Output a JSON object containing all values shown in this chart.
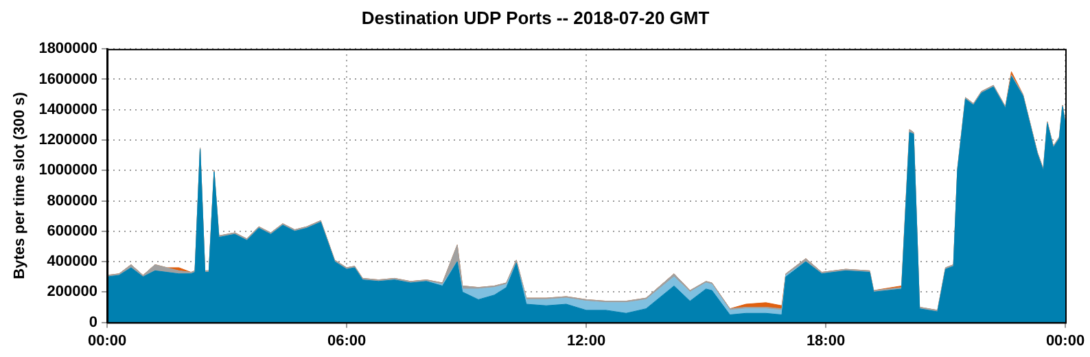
{
  "chart_data": {
    "type": "area",
    "title": "Destination UDP Ports -- 2018-07-20 GMT",
    "ylabel": "Bytes per time slot (300 s)",
    "stacked": true,
    "grid": true,
    "x": [
      0,
      0.3,
      0.6,
      0.9,
      1.2,
      1.5,
      1.8,
      2.1,
      2.2,
      2.33,
      2.45,
      2.55,
      2.68,
      2.8,
      3.2,
      3.5,
      3.8,
      4.1,
      4.4,
      4.7,
      5.0,
      5.35,
      5.7,
      6.0,
      6.2,
      6.4,
      6.8,
      7.2,
      7.6,
      8.0,
      8.4,
      8.77,
      8.9,
      9.3,
      9.7,
      10.0,
      10.25,
      10.5,
      11.0,
      11.5,
      12.0,
      12.5,
      13.0,
      13.5,
      14.2,
      14.6,
      15.0,
      15.15,
      15.6,
      16.0,
      16.5,
      16.9,
      17.0,
      17.5,
      17.9,
      18.5,
      19.1,
      19.2,
      19.9,
      20.1,
      20.2,
      20.35,
      20.8,
      21.0,
      21.2,
      21.3,
      21.5,
      21.7,
      21.9,
      22.2,
      22.5,
      22.65,
      22.94,
      23.3,
      23.45,
      23.55,
      23.7,
      23.85,
      23.93,
      24.0
    ],
    "xlim": [
      0,
      24
    ],
    "xticks": [
      {
        "value": 0,
        "label": "00:00"
      },
      {
        "value": 6,
        "label": "06:00"
      },
      {
        "value": 12,
        "label": "12:00"
      },
      {
        "value": 18,
        "label": "18:00"
      },
      {
        "value": 24,
        "label": "00:00"
      }
    ],
    "ylim": [
      0,
      1800000
    ],
    "yticks": [
      0,
      200000,
      400000,
      600000,
      800000,
      1000000,
      1200000,
      1400000,
      1600000,
      1800000
    ],
    "series": [
      {
        "color": "#0080b0",
        "values": [
          300000,
          310000,
          360000,
          300000,
          340000,
          330000,
          320000,
          320000,
          330000,
          1140000,
          330000,
          330000,
          990000,
          560000,
          580000,
          540000,
          620000,
          580000,
          640000,
          600000,
          620000,
          660000,
          400000,
          350000,
          360000,
          280000,
          270000,
          280000,
          260000,
          270000,
          240000,
          400000,
          200000,
          150000,
          180000,
          230000,
          390000,
          120000,
          110000,
          120000,
          80000,
          80000,
          60000,
          90000,
          240000,
          140000,
          220000,
          210000,
          50000,
          60000,
          60000,
          50000,
          300000,
          400000,
          320000,
          340000,
          330000,
          200000,
          220000,
          1250000,
          1240000,
          90000,
          70000,
          350000,
          370000,
          1000000,
          1470000,
          1430000,
          1510000,
          1550000,
          1410000,
          1620000,
          1490000,
          1110000,
          1000000,
          1310000,
          1150000,
          1210000,
          1420000,
          1310000
        ]
      },
      {
        "color": "#80c0e0",
        "values": [
          0,
          0,
          0,
          0,
          0,
          0,
          0,
          0,
          0,
          0,
          0,
          0,
          0,
          0,
          0,
          0,
          0,
          0,
          0,
          0,
          0,
          0,
          0,
          0,
          0,
          0,
          0,
          0,
          0,
          0,
          10000,
          0,
          20000,
          70000,
          50000,
          20000,
          0,
          30000,
          40000,
          40000,
          60000,
          50000,
          70000,
          60000,
          60000,
          60000,
          40000,
          40000,
          30000,
          30000,
          30000,
          30000,
          10000,
          0,
          0,
          0,
          0,
          0,
          0,
          0,
          0,
          0,
          0,
          0,
          0,
          0,
          0,
          0,
          0,
          0,
          0,
          0,
          0,
          0,
          0,
          0,
          0,
          0,
          0,
          0
        ]
      },
      {
        "color": "#a0a0a0",
        "values": [
          10000,
          10000,
          20000,
          10000,
          40000,
          30000,
          20000,
          10000,
          10000,
          10000,
          10000,
          10000,
          10000,
          10000,
          10000,
          10000,
          10000,
          10000,
          10000,
          10000,
          10000,
          10000,
          10000,
          10000,
          10000,
          10000,
          10000,
          10000,
          10000,
          10000,
          10000,
          110000,
          20000,
          10000,
          10000,
          10000,
          20000,
          10000,
          10000,
          10000,
          10000,
          10000,
          10000,
          10000,
          20000,
          10000,
          10000,
          10000,
          10000,
          10000,
          10000,
          10000,
          10000,
          20000,
          10000,
          10000,
          10000,
          10000,
          10000,
          20000,
          10000,
          10000,
          10000,
          10000,
          10000,
          10000,
          10000,
          10000,
          10000,
          10000,
          10000,
          10000,
          10000,
          10000,
          10000,
          10000,
          10000,
          10000,
          10000,
          10000
        ]
      },
      {
        "color": "#e06010",
        "values": [
          0,
          0,
          0,
          0,
          0,
          0,
          20000,
          0,
          0,
          0,
          0,
          0,
          0,
          0,
          0,
          0,
          0,
          0,
          0,
          0,
          0,
          0,
          0,
          0,
          0,
          0,
          0,
          0,
          0,
          0,
          0,
          0,
          0,
          0,
          0,
          0,
          0,
          0,
          0,
          0,
          0,
          0,
          0,
          0,
          0,
          0,
          0,
          0,
          0,
          20000,
          30000,
          20000,
          0,
          0,
          0,
          0,
          0,
          0,
          10000,
          0,
          0,
          0,
          0,
          0,
          0,
          0,
          0,
          0,
          0,
          0,
          0,
          20000,
          0,
          0,
          0,
          0,
          0,
          0,
          0,
          0
        ]
      }
    ]
  }
}
